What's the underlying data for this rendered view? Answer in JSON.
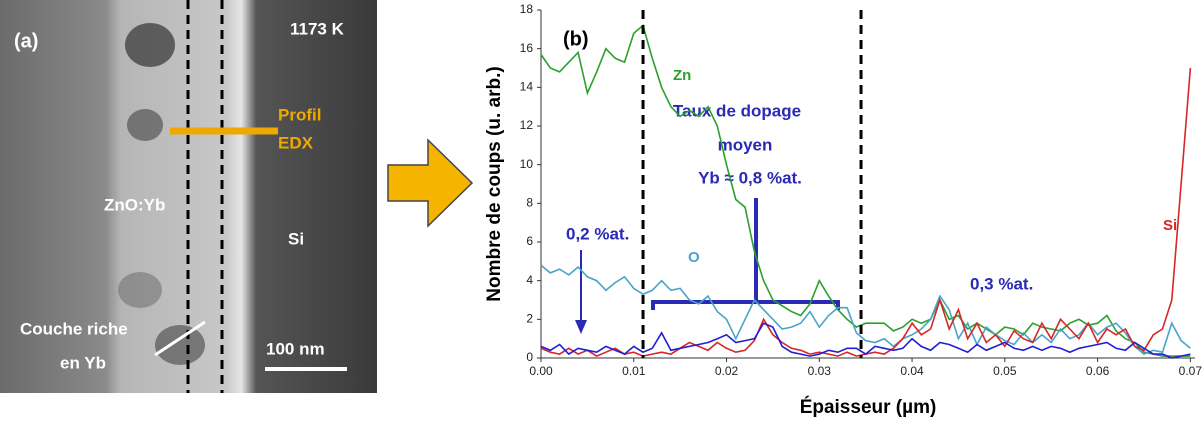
{
  "image_panel": {
    "label": "(a)",
    "temperature": "1173 K",
    "profile": [
      "Profil",
      "EDX"
    ],
    "layer_zno": "ZnO:Yb",
    "layer_si": "Si",
    "rich_layer": [
      "Couche riche",
      "en Yb"
    ],
    "scale_bar": "100 nm"
  },
  "chart_data": {
    "type": "line",
    "label": "(b)",
    "x_label": "Épaisseur (µm)",
    "y_label": "Nombre de coups (u. arb.)",
    "annotations": [
      "Taux de dopage",
      "moyen",
      "Yb ≈ 0,8 %at.",
      "0,2 %at.",
      "0,3 %at."
    ],
    "vlines": [
      0.011,
      0.0345
    ],
    "xlim": [
      0,
      0.0705
    ],
    "ylim": [
      0,
      18
    ],
    "xticks": [
      {
        "value": 0,
        "label": "0.00"
      },
      {
        "value": 0.01,
        "label": "0.01"
      },
      {
        "value": 0.02,
        "label": "0.02"
      },
      {
        "value": 0.03,
        "label": "0.03"
      },
      {
        "value": 0.04,
        "label": "0.04"
      },
      {
        "value": 0.05,
        "label": "0.05"
      },
      {
        "value": 0.06,
        "label": "0.06"
      },
      {
        "value": 0.07,
        "label": "0.07"
      }
    ],
    "yticks": [
      0,
      2,
      4,
      6,
      8,
      10,
      12,
      14,
      16,
      18
    ],
    "x": [
      0,
      0.001,
      0.002,
      0.003,
      0.004,
      0.005,
      0.006,
      0.007,
      0.008,
      0.009,
      0.01,
      0.011,
      0.012,
      0.013,
      0.014,
      0.015,
      0.016,
      0.017,
      0.018,
      0.019,
      0.02,
      0.021,
      0.022,
      0.023,
      0.024,
      0.025,
      0.026,
      0.027,
      0.028,
      0.029,
      0.03,
      0.031,
      0.032,
      0.033,
      0.034,
      0.035,
      0.036,
      0.037,
      0.038,
      0.039,
      0.04,
      0.041,
      0.042,
      0.043,
      0.044,
      0.045,
      0.046,
      0.047,
      0.048,
      0.049,
      0.05,
      0.051,
      0.052,
      0.053,
      0.054,
      0.055,
      0.056,
      0.057,
      0.058,
      0.059,
      0.06,
      0.061,
      0.062,
      0.063,
      0.064,
      0.065,
      0.066,
      0.067,
      0.068,
      0.069,
      0.07
    ],
    "series": [
      {
        "name": "Zn",
        "color": "#2ca02c",
        "values": [
          15.7,
          15.0,
          14.8,
          15.3,
          15.8,
          13.7,
          14.8,
          16.0,
          15.5,
          15.3,
          16.8,
          17.2,
          15.5,
          14.0,
          13.0,
          12.5,
          12.8,
          12.5,
          13.0,
          12.0,
          10.0,
          8.2,
          7.8,
          5.5,
          4.0,
          3.0,
          2.7,
          2.4,
          2.2,
          2.8,
          4.0,
          3.2,
          2.5,
          2.0,
          1.6,
          1.8,
          1.8,
          1.8,
          1.4,
          1.6,
          2.0,
          1.8,
          2.0,
          3.0,
          2.0,
          2.2,
          1.5,
          1.8,
          1.5,
          1.2,
          1.6,
          1.5,
          1.2,
          1.8,
          1.6,
          1.5,
          1.4,
          1.8,
          2.0,
          1.7,
          1.8,
          2.2,
          1.4,
          1.0,
          0.8,
          0.3,
          0.2,
          0.1,
          0.1,
          0.1,
          0.1
        ]
      },
      {
        "name": "O",
        "color": "#4aa3c8",
        "values": [
          4.8,
          4.4,
          4.6,
          4.3,
          4.7,
          4.2,
          4.0,
          3.5,
          3.9,
          4.2,
          3.6,
          3.3,
          3.5,
          4.0,
          3.5,
          3.6,
          3.0,
          2.8,
          3.2,
          2.4,
          2.0,
          1.0,
          2.0,
          3.0,
          2.5,
          2.0,
          1.5,
          1.6,
          1.8,
          2.4,
          1.6,
          2.2,
          2.6,
          2.6,
          1.3,
          0.9,
          0.8,
          1.0,
          0.6,
          1.0,
          1.2,
          1.5,
          2.0,
          3.2,
          2.5,
          1.0,
          1.8,
          0.7,
          1.6,
          1.2,
          0.9,
          0.7,
          1.3,
          0.8,
          1.2,
          0.8,
          1.5,
          1.0,
          1.2,
          1.8,
          1.2,
          1.6,
          1.8,
          1.3,
          0.6,
          0.2,
          0.4,
          0.3,
          1.8,
          0.9,
          0.5
        ]
      },
      {
        "name": "Si",
        "color": "#d62728",
        "values": [
          0.5,
          0.3,
          0.2,
          0.5,
          0.2,
          0.4,
          0.1,
          0.3,
          0.5,
          0.2,
          0.3,
          0.1,
          0.2,
          0.3,
          0.2,
          0.5,
          0.8,
          0.6,
          0.4,
          0.8,
          0.5,
          0.3,
          0.4,
          0.9,
          2.0,
          1.2,
          0.8,
          0.5,
          0.4,
          0.2,
          0.3,
          0.2,
          0.1,
          0.3,
          0.1,
          0.2,
          0.3,
          0.2,
          0.5,
          1.0,
          1.8,
          1.2,
          1.5,
          3.0,
          1.5,
          2.5,
          1.0,
          1.8,
          0.8,
          1.2,
          0.6,
          1.4,
          1.0,
          0.8,
          1.8,
          1.0,
          2.0,
          1.5,
          1.0,
          1.8,
          0.8,
          1.5,
          1.2,
          1.5,
          0.6,
          0.4,
          1.2,
          1.5,
          3.0,
          9.0,
          15.0
        ]
      },
      {
        "color": "#1f1fd6",
        "values": [
          0.6,
          0.4,
          0.7,
          0.2,
          0.5,
          0.4,
          0.3,
          0.6,
          0.4,
          0.2,
          0.6,
          0.3,
          0.5,
          1.3,
          0.4,
          0.5,
          0.6,
          0.7,
          0.8,
          1.0,
          1.2,
          0.8,
          0.9,
          1.0,
          1.8,
          1.6,
          0.6,
          0.3,
          0.2,
          0.1,
          0.2,
          0.4,
          0.3,
          0.5,
          0.5,
          0.2,
          0.6,
          0.5,
          0.4,
          0.5,
          1.0,
          0.6,
          0.4,
          0.8,
          0.7,
          0.5,
          0.3,
          0.7,
          0.4,
          0.6,
          0.8,
          0.5,
          0.4,
          0.6,
          0.4,
          0.6,
          0.5,
          0.3,
          0.5,
          0.6,
          0.7,
          0.8,
          0.5,
          0.4,
          0.8,
          0.5,
          0.2,
          0.2,
          0.0,
          0.1,
          0.2
        ]
      }
    ]
  }
}
